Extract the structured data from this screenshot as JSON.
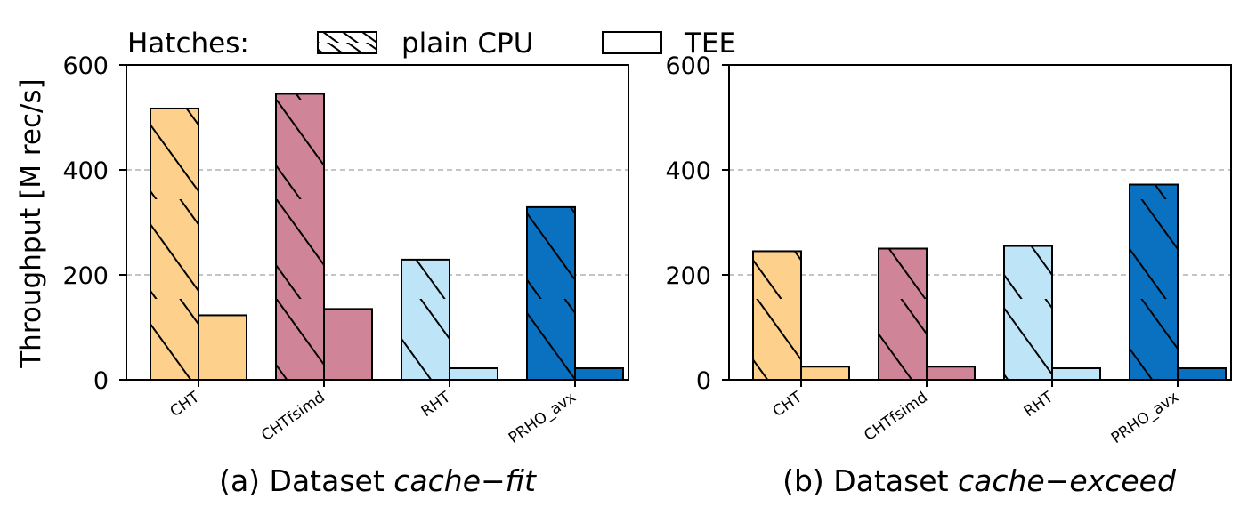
{
  "legend": {
    "title": "Hatches:",
    "items": [
      {
        "label": "plain CPU",
        "hatch": "diagonal"
      },
      {
        "label": "TEE",
        "hatch": "none"
      }
    ]
  },
  "ylabel": "Throughput [M rec/s]",
  "colors": {
    "CHT": "#fdd08c",
    "CHTfsimd": "#cf8597",
    "RHT": "#bee5f7",
    "PRHO_avx": "#0a71c1",
    "grid": "#b0b0b0",
    "edge": "#000000"
  },
  "chart_data": [
    {
      "type": "bar",
      "caption_prefix": "(a) Dataset ",
      "caption_math": "cache−fit",
      "categories": [
        "CHT",
        "CHTfsimd",
        "RHT",
        "PRHO_avx"
      ],
      "series": [
        {
          "name": "plain CPU",
          "values": [
            517,
            545,
            229,
            329
          ]
        },
        {
          "name": "TEE",
          "values": [
            123,
            135,
            22,
            22
          ]
        }
      ],
      "ylim": [
        0,
        600
      ],
      "yticks": [
        0,
        200,
        400,
        600
      ],
      "grid": "horizontal dashed at 200 and 400",
      "legend": "top"
    },
    {
      "type": "bar",
      "caption_prefix": "(b) Dataset ",
      "caption_math": "cache−exceed",
      "categories": [
        "CHT",
        "CHTfsimd",
        "RHT",
        "PRHO_avx"
      ],
      "series": [
        {
          "name": "plain CPU",
          "values": [
            245,
            250,
            255,
            372
          ]
        },
        {
          "name": "TEE",
          "values": [
            25,
            25,
            22,
            22
          ]
        }
      ],
      "ylim": [
        0,
        600
      ],
      "yticks": [
        0,
        200,
        400,
        600
      ],
      "grid": "horizontal dashed at 200 and 400",
      "legend": "top"
    }
  ]
}
